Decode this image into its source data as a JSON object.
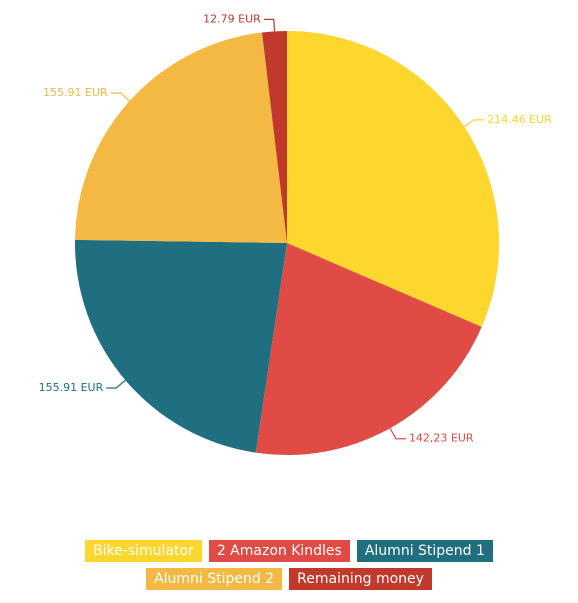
{
  "chart_data": {
    "type": "pie",
    "categories": [
      "Bike-simulator",
      "2 Amazon Kindles",
      "Alumni Stipend 1",
      "Alumni Stipend 2",
      "Remaining money"
    ],
    "values": [
      214.46,
      142.23,
      155.91,
      155.91,
      12.79
    ],
    "value_labels": [
      "214.46 EUR",
      "142,23 EUR",
      "155.91 EUR",
      "155.91 EUR",
      "12.79 EUR"
    ],
    "colors": [
      "#fdd62e",
      "#e04c45",
      "#1f6f80",
      "#f4b942",
      "#c0392b"
    ],
    "start_angle": 0,
    "direction": "clockwise",
    "legend": "bottom"
  }
}
